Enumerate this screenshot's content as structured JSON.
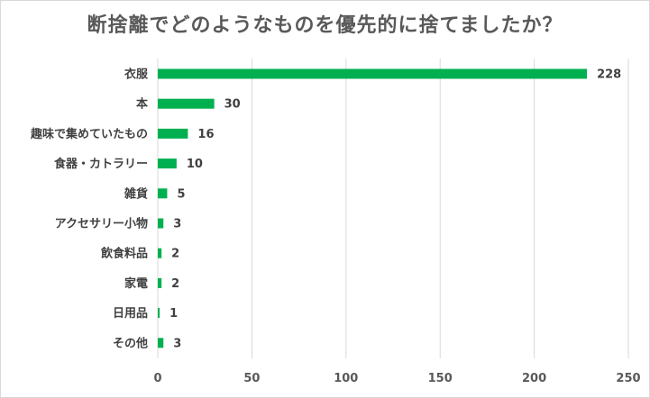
{
  "chart_data": {
    "type": "bar",
    "orientation": "horizontal",
    "title": "断捨離でどのようなものを優先的に捨てましたか？",
    "categories": [
      "衣服",
      "本",
      "趣味で集めていたもの",
      "食器・カトラリー",
      "雑貨",
      "アクセサリー小物",
      "飲食料品",
      "家電",
      "日用品",
      "その他"
    ],
    "values": [
      228,
      30,
      16,
      10,
      5,
      3,
      2,
      2,
      1,
      3
    ],
    "x_ticks": [
      "0",
      "50",
      "100",
      "150",
      "200",
      "250"
    ],
    "xlim": [
      0,
      250
    ],
    "grid": true,
    "legend": "none",
    "bar_color": "#00b050",
    "grid_color": "#d9d9d9"
  }
}
